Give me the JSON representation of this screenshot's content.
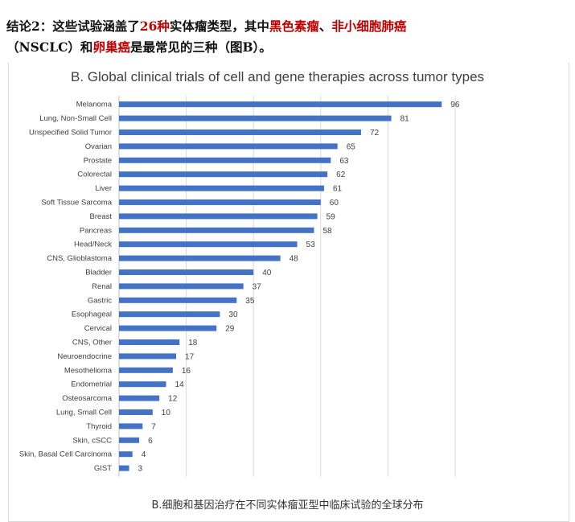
{
  "headline": {
    "part1": "结论2：这些试验涵盖了",
    "count": "26种",
    "part2": "实体瘤类型，其中",
    "t1": "黑色素瘤",
    "sep": "、",
    "t2": "非小细胞肺癌",
    "part3": "（NSCLC）和",
    "t3": "卵巢癌",
    "part4": "是最常见的三种（图B）。"
  },
  "caption": "B.细胞和基因治疗在不同实体瘤亚型中临床试验的全球分布",
  "colors": {
    "bar": "#4472c4",
    "grid": "#d9d9d9",
    "label": "#404040",
    "red": "#c00000"
  },
  "chart_data": {
    "type": "bar",
    "orientation": "horizontal",
    "title": "B. Global clinical trials of cell and gene therapies across tumor types",
    "xlabel": "",
    "ylabel": "",
    "xlim": [
      0,
      100
    ],
    "grid": true,
    "categories": [
      "Melanoma",
      "Lung, Non-Small Cell",
      "Unspecified Solid Tumor",
      "Ovarian",
      "Prostate",
      "Colorectal",
      "Liver",
      "Soft Tissue Sarcoma",
      "Breast",
      "Pancreas",
      "Head/Neck",
      "CNS, Glioblastoma",
      "Bladder",
      "Renal",
      "Gastric",
      "Esophageal",
      "Cervical",
      "CNS, Other",
      "Neuroendocrine",
      "Mesothelioma",
      "Endometrial",
      "Osteosarcoma",
      "Lung, Small Cell",
      "Thyroid",
      "Skin, cSCC",
      "Skin, Basal Cell Carcinoma",
      "GIST"
    ],
    "values": [
      96,
      81,
      72,
      65,
      63,
      62,
      61,
      60,
      59,
      58,
      53,
      48,
      40,
      37,
      35,
      30,
      29,
      18,
      17,
      16,
      14,
      12,
      10,
      7,
      6,
      4,
      3
    ]
  }
}
